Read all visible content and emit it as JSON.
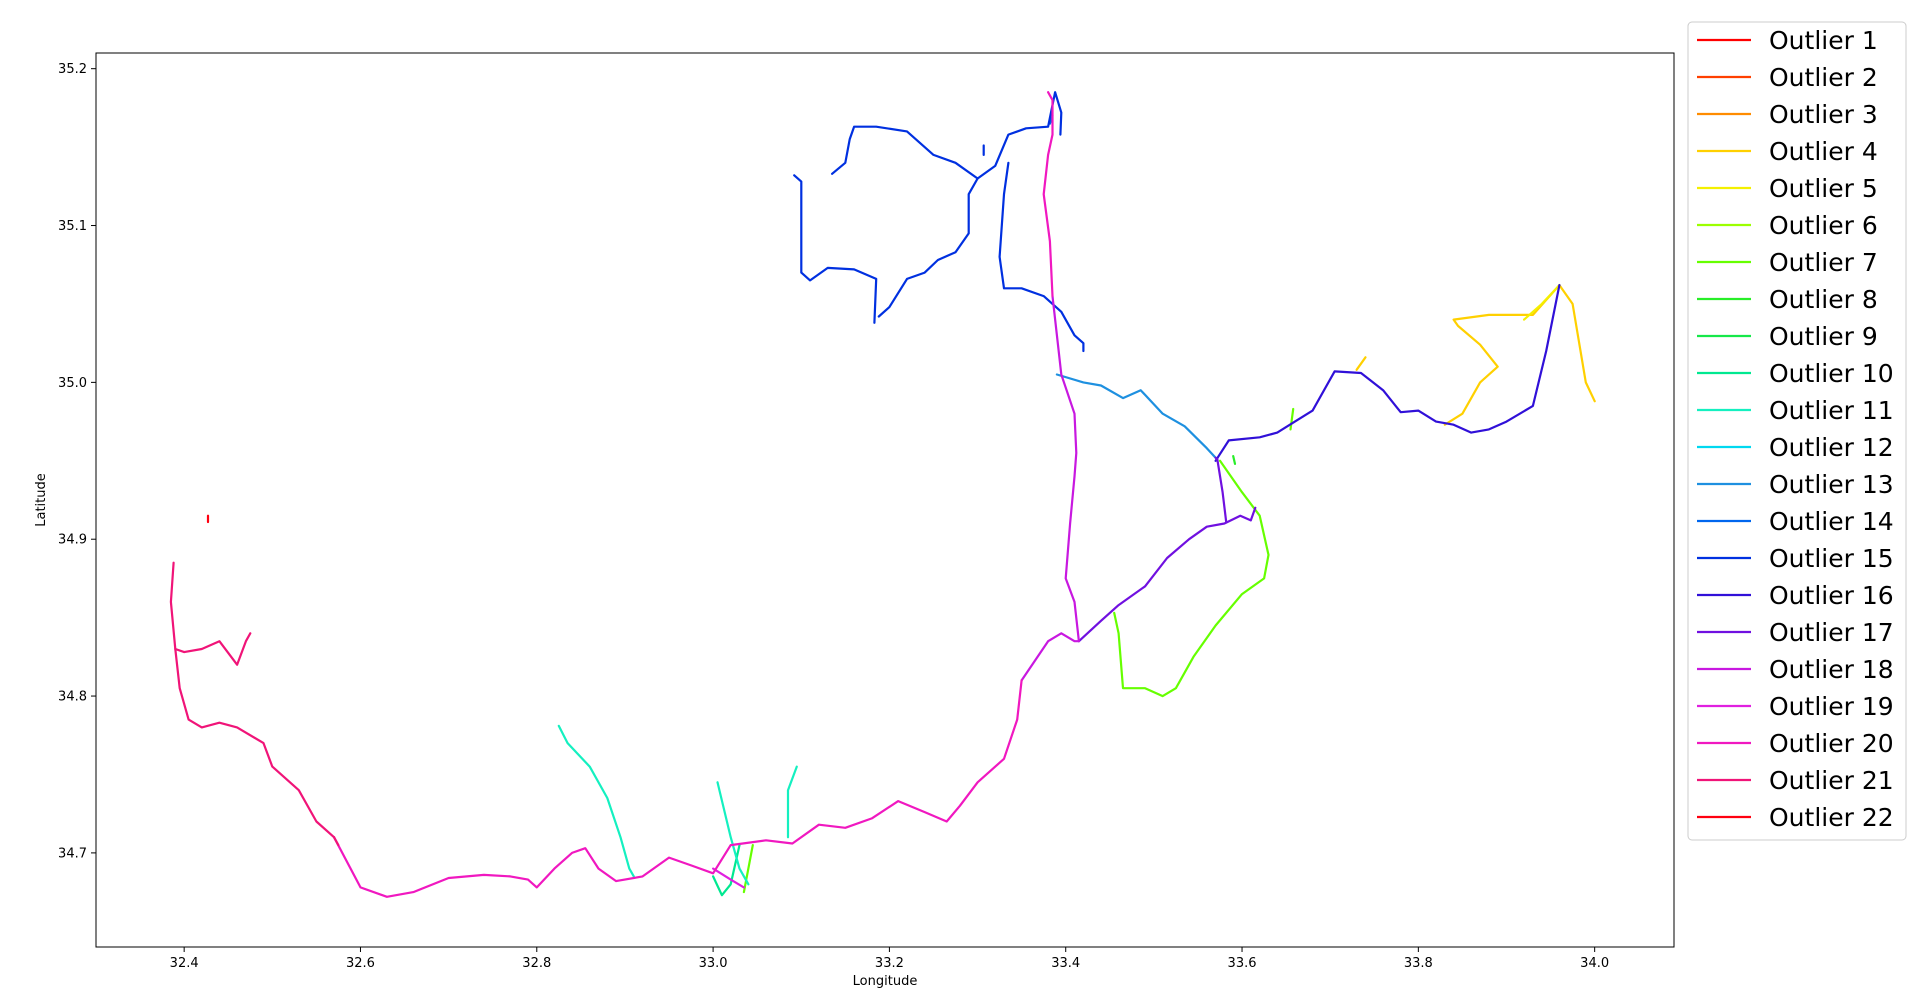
{
  "chart_data": {
    "type": "line",
    "title": "",
    "xlabel": "Longitude",
    "ylabel": "Latitude",
    "xlim": [
      32.3,
      34.09
    ],
    "ylim": [
      34.64,
      35.21
    ],
    "xticks": [
      32.4,
      32.6,
      32.8,
      33.0,
      33.2,
      33.4,
      33.6,
      33.8,
      34.0
    ],
    "yticks": [
      34.7,
      34.8,
      34.9,
      35.0,
      35.1,
      35.2
    ],
    "xtick_labels": [
      "32.4",
      "32.6",
      "32.8",
      "33.0",
      "33.2",
      "33.4",
      "33.6",
      "33.8",
      "34.0"
    ],
    "ytick_labels": [
      "34.7",
      "34.8",
      "34.9",
      "35.0",
      "35.1",
      "35.2"
    ],
    "grid": false,
    "legend_position": "outside-right",
    "series": [
      {
        "name": "Outlier 1",
        "color": "#ff0000",
        "segments": []
      },
      {
        "name": "Outlier 2",
        "color": "#ff4000",
        "segments": []
      },
      {
        "name": "Outlier 3",
        "color": "#ff8c00",
        "segments": []
      },
      {
        "name": "Outlier 4",
        "color": "#ffd000",
        "segments": [
          [
            [
              33.83,
              34.973
            ],
            [
              33.85,
              34.98
            ],
            [
              33.87,
              35.0
            ],
            [
              33.89,
              35.01
            ],
            [
              33.87,
              35.024
            ],
            [
              33.845,
              35.036
            ],
            [
              33.84,
              35.04
            ],
            [
              33.88,
              35.043
            ],
            [
              33.93,
              35.043
            ],
            [
              33.96,
              35.062
            ]
          ],
          [
            [
              33.96,
              35.062
            ],
            [
              33.975,
              35.05
            ],
            [
              33.99,
              35.0
            ],
            [
              34.0,
              34.988
            ]
          ],
          [
            [
              33.73,
              35.008
            ],
            [
              33.74,
              35.016
            ]
          ]
        ]
      },
      {
        "name": "Outlier 5",
        "color": "#f4f000",
        "segments": [
          [
            [
              33.96,
              35.062
            ],
            [
              33.94,
              35.05
            ],
            [
              33.92,
              35.04
            ]
          ]
        ]
      },
      {
        "name": "Outlier 6",
        "color": "#9cff00",
        "segments": []
      },
      {
        "name": "Outlier 7",
        "color": "#66ff00",
        "segments": [
          [
            [
              33.575,
              34.95
            ],
            [
              33.6,
              34.93
            ],
            [
              33.62,
              34.915
            ],
            [
              33.63,
              34.89
            ],
            [
              33.625,
              34.875
            ],
            [
              33.6,
              34.865
            ],
            [
              33.57,
              34.845
            ],
            [
              33.545,
              34.825
            ],
            [
              33.525,
              34.805
            ],
            [
              33.51,
              34.8
            ],
            [
              33.49,
              34.805
            ],
            [
              33.465,
              34.805
            ],
            [
              33.46,
              34.84
            ],
            [
              33.455,
              34.853
            ]
          ],
          [
            [
              33.655,
              34.97
            ],
            [
              33.658,
              34.983
            ]
          ],
          [
            [
              33.035,
              34.675
            ],
            [
              33.045,
              34.705
            ]
          ]
        ]
      },
      {
        "name": "Outlier 8",
        "color": "#28ee28",
        "segments": [
          [
            [
              33.59,
              34.953
            ],
            [
              33.592,
              34.948
            ]
          ]
        ]
      },
      {
        "name": "Outlier 9",
        "color": "#16e84a",
        "segments": []
      },
      {
        "name": "Outlier 10",
        "color": "#00e890",
        "segments": [
          [
            [
              33.03,
              34.705
            ],
            [
              33.02,
              34.68
            ],
            [
              33.01,
              34.673
            ],
            [
              33.0,
              34.685
            ]
          ]
        ]
      },
      {
        "name": "Outlier 11",
        "color": "#14f0c0",
        "segments": [
          [
            [
              32.825,
              34.781
            ],
            [
              32.835,
              34.77
            ],
            [
              32.86,
              34.755
            ],
            [
              32.88,
              34.735
            ],
            [
              32.895,
              34.71
            ],
            [
              32.905,
              34.69
            ],
            [
              32.91,
              34.685
            ]
          ],
          [
            [
              33.005,
              34.745
            ],
            [
              33.02,
              34.71
            ],
            [
              33.03,
              34.69
            ],
            [
              33.04,
              34.68
            ]
          ],
          [
            [
              33.095,
              34.755
            ],
            [
              33.085,
              34.74
            ],
            [
              33.085,
              34.71
            ]
          ]
        ]
      },
      {
        "name": "Outlier 12",
        "color": "#00d8f0",
        "segments": []
      },
      {
        "name": "Outlier 13",
        "color": "#1e90e0",
        "segments": [
          [
            [
              33.39,
              35.005
            ],
            [
              33.42,
              35.0
            ],
            [
              33.44,
              34.998
            ],
            [
              33.465,
              34.99
            ],
            [
              33.485,
              34.995
            ],
            [
              33.51,
              34.98
            ],
            [
              33.535,
              34.972
            ],
            [
              33.56,
              34.958
            ],
            [
              33.57,
              34.952
            ]
          ]
        ]
      },
      {
        "name": "Outlier 14",
        "color": "#0066ee",
        "segments": [
          [
            [
              33.382,
              35.165
            ],
            [
              33.385,
              35.17
            ]
          ]
        ]
      },
      {
        "name": "Outlier 15",
        "color": "#0030e0",
        "segments": [
          [
            [
              33.092,
              35.132
            ],
            [
              33.1,
              35.128
            ],
            [
              33.1,
              35.07
            ],
            [
              33.11,
              35.065
            ],
            [
              33.13,
              35.073
            ],
            [
              33.16,
              35.072
            ],
            [
              33.185,
              35.066
            ],
            [
              33.183,
              35.038
            ]
          ],
          [
            [
              33.135,
              35.133
            ],
            [
              33.15,
              35.14
            ],
            [
              33.155,
              35.155
            ],
            [
              33.16,
              35.163
            ],
            [
              33.185,
              35.163
            ],
            [
              33.22,
              35.16
            ],
            [
              33.25,
              35.145
            ],
            [
              33.275,
              35.14
            ],
            [
              33.3,
              35.13
            ],
            [
              33.32,
              35.138
            ],
            [
              33.335,
              35.158
            ],
            [
              33.355,
              35.162
            ],
            [
              33.38,
              35.163
            ],
            [
              33.388,
              35.185
            ],
            [
              33.395,
              35.172
            ],
            [
              33.394,
              35.158
            ]
          ],
          [
            [
              33.3,
              35.13
            ],
            [
              33.29,
              35.12
            ],
            [
              33.29,
              35.095
            ],
            [
              33.275,
              35.083
            ],
            [
              33.255,
              35.078
            ],
            [
              33.24,
              35.07
            ],
            [
              33.22,
              35.066
            ],
            [
              33.2,
              35.048
            ],
            [
              33.188,
              35.042
            ]
          ],
          [
            [
              33.335,
              35.14
            ],
            [
              33.33,
              35.12
            ],
            [
              33.325,
              35.08
            ],
            [
              33.33,
              35.06
            ],
            [
              33.35,
              35.06
            ],
            [
              33.375,
              35.055
            ],
            [
              33.395,
              35.045
            ],
            [
              33.41,
              35.03
            ],
            [
              33.42,
              35.025
            ],
            [
              33.42,
              35.02
            ]
          ],
          [
            [
              33.307,
              35.145
            ],
            [
              33.307,
              35.151
            ]
          ]
        ]
      },
      {
        "name": "Outlier 16",
        "color": "#3010d8",
        "segments": [
          [
            [
              33.57,
              34.95
            ],
            [
              33.585,
              34.963
            ],
            [
              33.62,
              34.965
            ],
            [
              33.64,
              34.968
            ],
            [
              33.66,
              34.975
            ],
            [
              33.68,
              34.982
            ],
            [
              33.705,
              35.007
            ],
            [
              33.735,
              35.006
            ],
            [
              33.76,
              34.995
            ],
            [
              33.78,
              34.981
            ],
            [
              33.8,
              34.982
            ],
            [
              33.82,
              34.975
            ],
            [
              33.84,
              34.973
            ],
            [
              33.86,
              34.968
            ],
            [
              33.88,
              34.97
            ],
            [
              33.9,
              34.975
            ],
            [
              33.93,
              34.985
            ],
            [
              33.945,
              35.02
            ],
            [
              33.96,
              35.062
            ]
          ]
        ]
      },
      {
        "name": "Outlier 17",
        "color": "#7010e0",
        "segments": [
          [
            [
              33.415,
              34.835
            ],
            [
              33.44,
              34.848
            ],
            [
              33.46,
              34.858
            ],
            [
              33.49,
              34.87
            ],
            [
              33.515,
              34.888
            ],
            [
              33.54,
              34.9
            ],
            [
              33.56,
              34.908
            ],
            [
              33.58,
              34.91
            ],
            [
              33.598,
              34.915
            ],
            [
              33.61,
              34.912
            ],
            [
              33.615,
              34.92
            ]
          ],
          [
            [
              33.582,
              34.911
            ],
            [
              33.578,
              34.93
            ],
            [
              33.572,
              34.951
            ],
            [
              33.57,
              34.952
            ]
          ]
        ]
      },
      {
        "name": "Outlier 18",
        "color": "#c818e0",
        "segments": [
          [
            [
              33.35,
              34.81
            ],
            [
              33.38,
              34.835
            ],
            [
              33.395,
              34.84
            ],
            [
              33.41,
              34.835
            ],
            [
              33.415,
              34.835
            ],
            [
              33.41,
              34.86
            ],
            [
              33.4,
              34.875
            ],
            [
              33.405,
              34.91
            ],
            [
              33.41,
              34.94
            ],
            [
              33.412,
              34.955
            ],
            [
              33.41,
              34.98
            ],
            [
              33.395,
              35.005
            ],
            [
              33.39,
              35.03
            ],
            [
              33.385,
              35.055
            ]
          ]
        ]
      },
      {
        "name": "Outlier 19",
        "color": "#e020e0",
        "segments": [
          [
            [
              33.0,
              34.69
            ],
            [
              33.02,
              34.683
            ],
            [
              33.035,
              34.678
            ]
          ]
        ]
      },
      {
        "name": "Outlier 20",
        "color": "#f018c0",
        "segments": [
          [
            [
              32.57,
              34.71
            ],
            [
              32.6,
              34.678
            ],
            [
              32.63,
              34.672
            ],
            [
              32.66,
              34.675
            ],
            [
              32.7,
              34.684
            ],
            [
              32.74,
              34.686
            ],
            [
              32.77,
              34.685
            ],
            [
              32.79,
              34.683
            ],
            [
              32.8,
              34.678
            ],
            [
              32.82,
              34.69
            ],
            [
              32.84,
              34.7
            ],
            [
              32.855,
              34.703
            ],
            [
              32.87,
              34.69
            ],
            [
              32.89,
              34.682
            ],
            [
              32.92,
              34.685
            ],
            [
              32.95,
              34.697
            ],
            [
              32.975,
              34.692
            ],
            [
              33.0,
              34.687
            ],
            [
              33.02,
              34.705
            ],
            [
              33.06,
              34.708
            ],
            [
              33.09,
              34.706
            ],
            [
              33.12,
              34.718
            ],
            [
              33.15,
              34.716
            ],
            [
              33.18,
              34.722
            ],
            [
              33.21,
              34.733
            ],
            [
              33.24,
              34.726
            ],
            [
              33.265,
              34.72
            ],
            [
              33.28,
              34.73
            ],
            [
              33.3,
              34.745
            ],
            [
              33.33,
              34.76
            ],
            [
              33.345,
              34.785
            ],
            [
              33.35,
              34.81
            ]
          ],
          [
            [
              33.385,
              35.055
            ],
            [
              33.382,
              35.09
            ],
            [
              33.375,
              35.12
            ],
            [
              33.38,
              35.145
            ],
            [
              33.385,
              35.158
            ],
            [
              33.385,
              35.18
            ],
            [
              33.38,
              35.185
            ]
          ]
        ]
      },
      {
        "name": "Outlier 21",
        "color": "#f01478",
        "segments": [
          [
            [
              32.57,
              34.71
            ],
            [
              32.55,
              34.72
            ],
            [
              32.53,
              34.74
            ],
            [
              32.5,
              34.755
            ],
            [
              32.49,
              34.77
            ],
            [
              32.46,
              34.78
            ],
            [
              32.44,
              34.783
            ],
            [
              32.42,
              34.78
            ],
            [
              32.405,
              34.785
            ],
            [
              32.395,
              34.805
            ],
            [
              32.39,
              34.83
            ],
            [
              32.385,
              34.86
            ],
            [
              32.388,
              34.885
            ]
          ],
          [
            [
              32.39,
              34.83
            ],
            [
              32.4,
              34.828
            ],
            [
              32.42,
              34.83
            ],
            [
              32.44,
              34.835
            ],
            [
              32.46,
              34.82
            ],
            [
              32.47,
              34.835
            ],
            [
              32.475,
              34.84
            ]
          ],
          [
            [
              32.575,
              34.705
            ],
            [
              32.57,
              34.71
            ]
          ]
        ]
      },
      {
        "name": "Outlier 22",
        "color": "#ff0010",
        "segments": [
          [
            [
              32.427,
              34.911
            ],
            [
              32.427,
              34.915
            ]
          ]
        ]
      }
    ]
  }
}
